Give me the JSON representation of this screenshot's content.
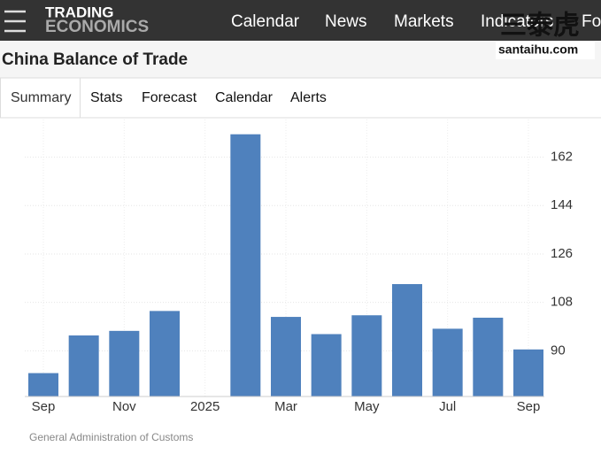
{
  "header": {
    "logo": [
      "TRADING",
      "ECONOMICS"
    ],
    "nav": [
      "Calendar",
      "News",
      "Markets",
      "Indicators",
      "Fo"
    ]
  },
  "watermark": {
    "text": "三泰虎",
    "url": "santaihu.com"
  },
  "page_title": "China Balance of Trade",
  "tabs": [
    "Summary",
    "Stats",
    "Forecast",
    "Calendar",
    "Alerts"
  ],
  "chart_data": {
    "type": "bar",
    "categories": [
      "Sep",
      null,
      "Nov",
      null,
      "2025",
      null,
      "Mar",
      null,
      "May",
      null,
      "Jul",
      null,
      "Sep"
    ],
    "values": [
      81.7,
      95.7,
      97.4,
      104.8,
      null,
      170.5,
      102.6,
      96.2,
      103.2,
      114.8,
      98.2,
      102.3,
      90.5
    ],
    "color": "#4f81bd",
    "ylim": [
      73,
      176
    ],
    "yticks": [
      90,
      108,
      126,
      144,
      162
    ],
    "grid": true
  },
  "source": "General Administration of Customs"
}
